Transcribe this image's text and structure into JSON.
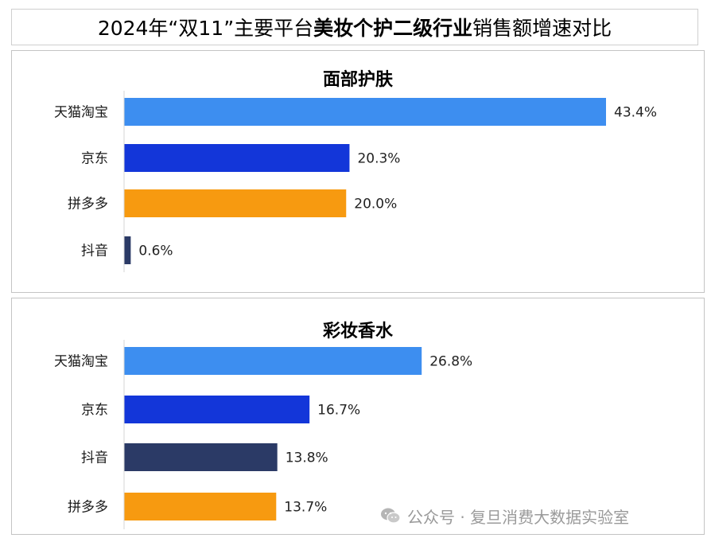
{
  "header": {
    "title_pre": "2024年“双11”主要平台",
    "title_bold": "美妆个护二级行业",
    "title_post": "销售额增速对比"
  },
  "colors": {
    "tmall": "#3d8ef0",
    "jd": "#1336d9",
    "pdd": "#f79a10",
    "douyin": "#2b3a66"
  },
  "chart_data": [
    {
      "type": "bar",
      "orientation": "horizontal",
      "title": "面部护肤",
      "categories": [
        "天猫淘宝",
        "京东",
        "拼多多",
        "抖音"
      ],
      "values": [
        43.4,
        20.3,
        20.0,
        0.6
      ],
      "value_labels": [
        "43.4%",
        "20.3%",
        "20.0%",
        "0.6%"
      ],
      "bar_colors": [
        "#3d8ef0",
        "#1336d9",
        "#f79a10",
        "#2b3a66"
      ],
      "xlim": [
        0,
        43.4
      ],
      "grid": false,
      "legend": "none"
    },
    {
      "type": "bar",
      "orientation": "horizontal",
      "title": "彩妆香水",
      "categories": [
        "天猫淘宝",
        "京东",
        "抖音",
        "拼多多"
      ],
      "values": [
        26.8,
        16.7,
        13.8,
        13.7
      ],
      "value_labels": [
        "26.8%",
        "16.7%",
        "13.8%",
        "13.7%"
      ],
      "bar_colors": [
        "#3d8ef0",
        "#1336d9",
        "#2b3a66",
        "#f79a10"
      ],
      "xlim": [
        0,
        43.4
      ],
      "grid": false,
      "legend": "none"
    }
  ],
  "watermark": {
    "text": "公众号 · 复旦消费大数据实验室",
    "icon": "wechat-icon"
  }
}
